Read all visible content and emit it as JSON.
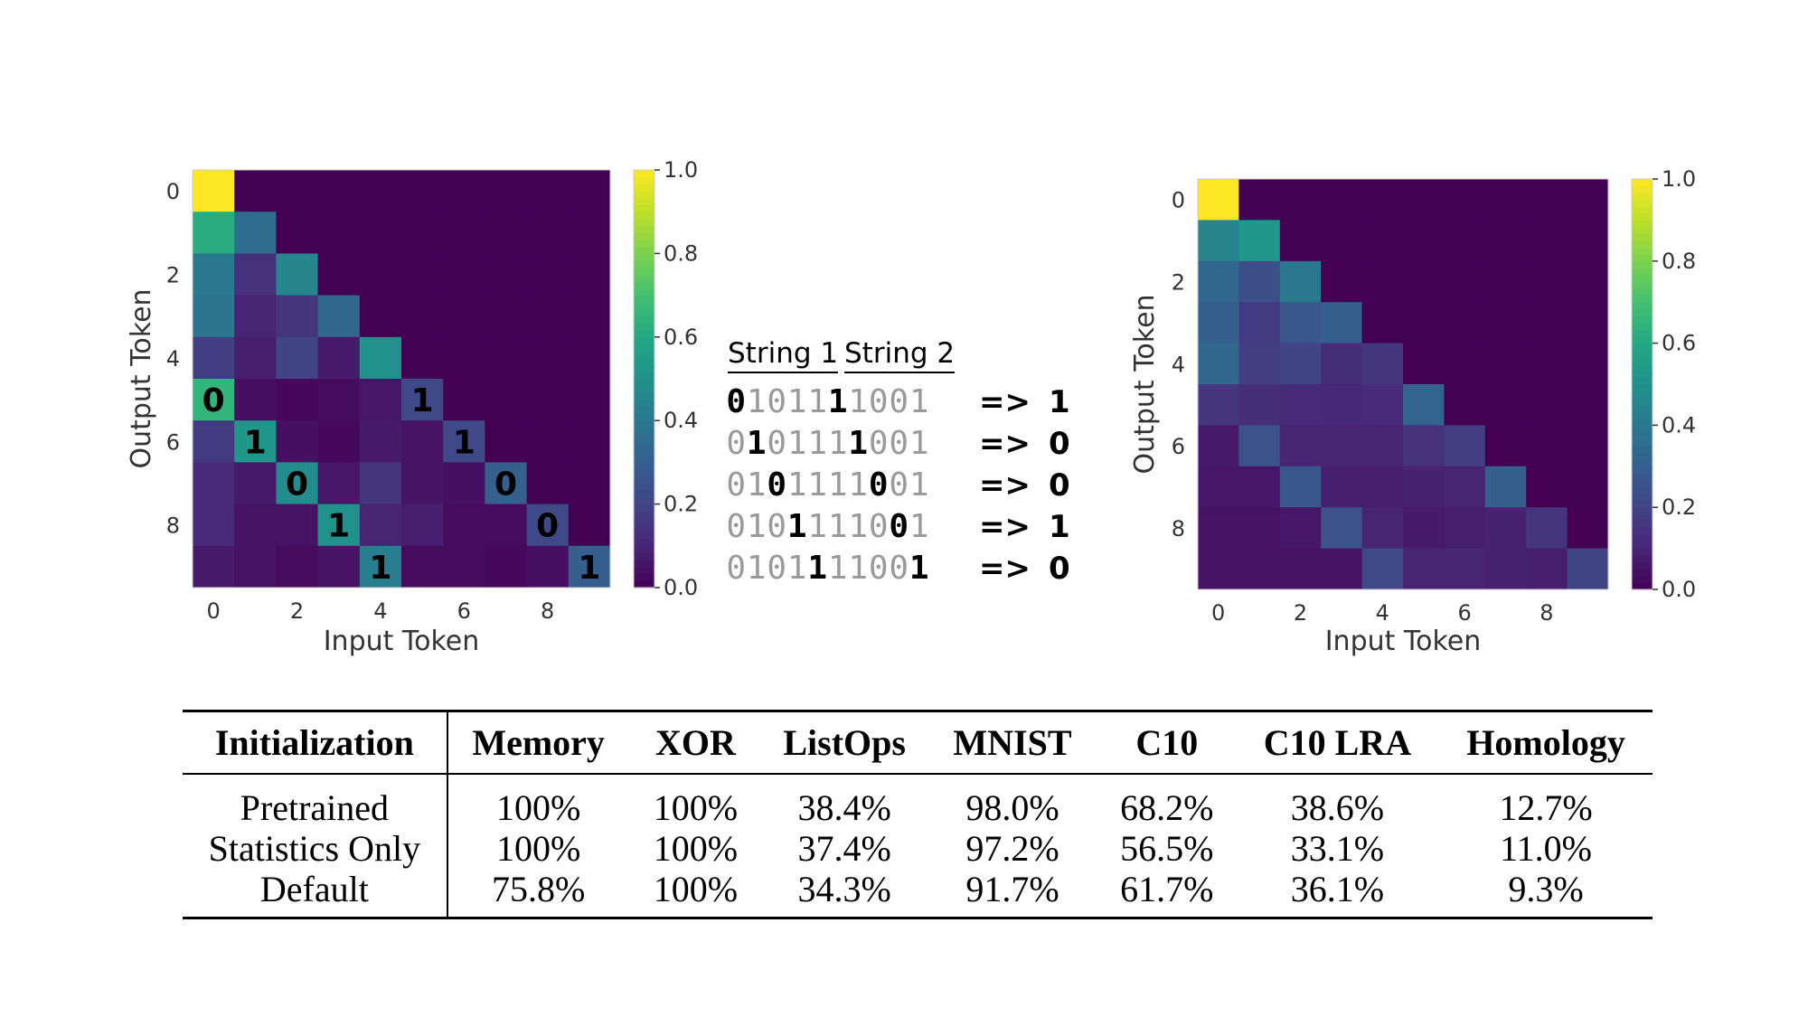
{
  "chart_data": [
    {
      "type": "heatmap",
      "xlabel": "Input Token",
      "ylabel": "Output Token",
      "x_ticks": [
        "0",
        "2",
        "4",
        "6",
        "8"
      ],
      "y_ticks": [
        "0",
        "2",
        "4",
        "6",
        "8"
      ],
      "colorbar_ticks": [
        "0.0",
        "0.2",
        "0.4",
        "0.6",
        "0.8",
        "1.0"
      ],
      "colormap": "viridis",
      "vmin": 0,
      "vmax": 1,
      "values": [
        [
          1.0,
          0,
          0,
          0,
          0,
          0,
          0,
          0,
          0,
          0
        ],
        [
          0.62,
          0.35,
          0,
          0,
          0,
          0,
          0,
          0,
          0,
          0
        ],
        [
          0.4,
          0.14,
          0.45,
          0,
          0,
          0,
          0,
          0,
          0,
          0
        ],
        [
          0.38,
          0.1,
          0.15,
          0.33,
          0,
          0,
          0,
          0,
          0,
          0
        ],
        [
          0.18,
          0.08,
          0.2,
          0.07,
          0.5,
          0,
          0,
          0,
          0,
          0
        ],
        [
          0.65,
          0.04,
          0.02,
          0.03,
          0.06,
          0.22,
          0,
          0,
          0,
          0
        ],
        [
          0.17,
          0.52,
          0.04,
          0.02,
          0.07,
          0.05,
          0.22,
          0,
          0,
          0
        ],
        [
          0.12,
          0.07,
          0.48,
          0.06,
          0.15,
          0.05,
          0.04,
          0.3,
          0,
          0
        ],
        [
          0.12,
          0.05,
          0.05,
          0.5,
          0.1,
          0.08,
          0.03,
          0.03,
          0.22,
          0
        ],
        [
          0.07,
          0.05,
          0.03,
          0.05,
          0.42,
          0.03,
          0.03,
          0.02,
          0.04,
          0.3
        ]
      ],
      "annotations": [
        {
          "row": 5,
          "col": 0,
          "text": "0"
        },
        {
          "row": 5,
          "col": 5,
          "text": "1"
        },
        {
          "row": 6,
          "col": 1,
          "text": "1"
        },
        {
          "row": 6,
          "col": 6,
          "text": "1"
        },
        {
          "row": 7,
          "col": 2,
          "text": "0"
        },
        {
          "row": 7,
          "col": 7,
          "text": "0"
        },
        {
          "row": 8,
          "col": 3,
          "text": "1"
        },
        {
          "row": 8,
          "col": 8,
          "text": "0"
        },
        {
          "row": 9,
          "col": 4,
          "text": "1"
        },
        {
          "row": 9,
          "col": 9,
          "text": "1"
        }
      ]
    },
    {
      "type": "heatmap",
      "xlabel": "Input Token",
      "ylabel": "Output Token",
      "x_ticks": [
        "0",
        "2",
        "4",
        "6",
        "8"
      ],
      "y_ticks": [
        "0",
        "2",
        "4",
        "6",
        "8"
      ],
      "colorbar_ticks": [
        "0.0",
        "0.2",
        "0.4",
        "0.6",
        "0.8",
        "1.0"
      ],
      "colormap": "viridis",
      "vmin": 0,
      "vmax": 1,
      "values": [
        [
          1.0,
          0,
          0,
          0,
          0,
          0,
          0,
          0,
          0,
          0
        ],
        [
          0.45,
          0.52,
          0,
          0,
          0,
          0,
          0,
          0,
          0,
          0
        ],
        [
          0.33,
          0.24,
          0.4,
          0,
          0,
          0,
          0,
          0,
          0,
          0
        ],
        [
          0.3,
          0.17,
          0.27,
          0.3,
          0,
          0,
          0,
          0,
          0,
          0
        ],
        [
          0.33,
          0.18,
          0.2,
          0.13,
          0.16,
          0,
          0,
          0,
          0,
          0
        ],
        [
          0.16,
          0.13,
          0.12,
          0.11,
          0.12,
          0.32,
          0,
          0,
          0,
          0
        ],
        [
          0.07,
          0.25,
          0.1,
          0.1,
          0.1,
          0.14,
          0.18,
          0,
          0,
          0
        ],
        [
          0.06,
          0.06,
          0.27,
          0.08,
          0.08,
          0.09,
          0.1,
          0.3,
          0,
          0
        ],
        [
          0.05,
          0.05,
          0.06,
          0.25,
          0.1,
          0.07,
          0.08,
          0.09,
          0.15,
          0
        ],
        [
          0.05,
          0.05,
          0.05,
          0.05,
          0.22,
          0.1,
          0.1,
          0.09,
          0.08,
          0.2
        ]
      ]
    }
  ],
  "xor_example": {
    "header": [
      "String 1",
      "String 2"
    ],
    "arrow": "=>",
    "rows": [
      {
        "digits": "0101111001",
        "bold": [
          0,
          5
        ],
        "result": "1"
      },
      {
        "digits": "0101111001",
        "bold": [
          1,
          6
        ],
        "result": "0"
      },
      {
        "digits": "0101111001",
        "bold": [
          2,
          7
        ],
        "result": "0"
      },
      {
        "digits": "0101111001",
        "bold": [
          3,
          8
        ],
        "result": "1"
      },
      {
        "digits": "0101111001",
        "bold": [
          4,
          9
        ],
        "result": "0"
      }
    ]
  },
  "table": {
    "columns": [
      "Initialization",
      "Memory",
      "XOR",
      "ListOps",
      "MNIST",
      "C10",
      "C10 LRA",
      "Homology"
    ],
    "rows": [
      [
        "Pretrained",
        "100%",
        "100%",
        "38.4%",
        "98.0%",
        "68.2%",
        "38.6%",
        "12.7%"
      ],
      [
        "Statistics Only",
        "100%",
        "100%",
        "37.4%",
        "97.2%",
        "56.5%",
        "33.1%",
        "11.0%"
      ],
      [
        "Default",
        "75.8%",
        "100%",
        "34.3%",
        "91.7%",
        "61.7%",
        "36.1%",
        "9.3%"
      ]
    ]
  }
}
